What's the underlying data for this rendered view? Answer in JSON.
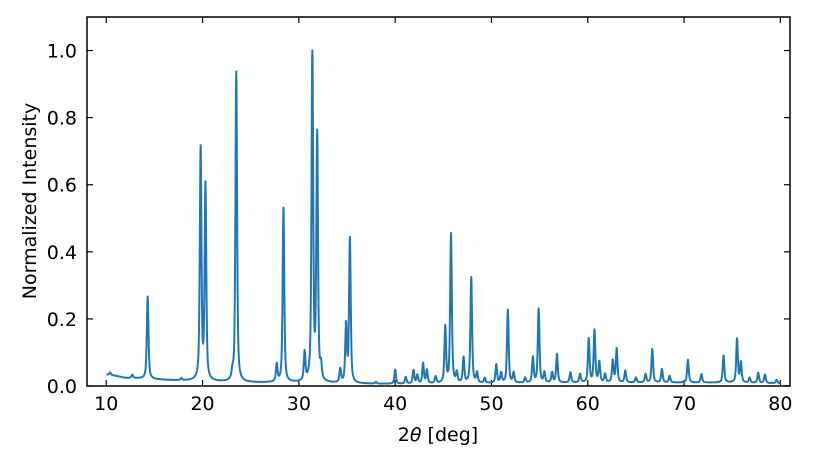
{
  "chart_data": {
    "type": "line",
    "title": "",
    "xlabel_prefix": "2",
    "xlabel_symbol": "θ",
    "xlabel_suffix": " [deg]",
    "ylabel": "Normalized Intensity",
    "xlim": [
      8,
      81
    ],
    "ylim": [
      0,
      1.1
    ],
    "xticks": [
      10,
      20,
      30,
      40,
      50,
      60,
      70,
      80
    ],
    "yticks": [
      0.0,
      0.2,
      0.4,
      0.6,
      0.8,
      1.0
    ],
    "xtick_labels": [
      "10",
      "20",
      "30",
      "40",
      "50",
      "60",
      "70",
      "80"
    ],
    "ytick_labels": [
      "0.0",
      "0.2",
      "0.4",
      "0.6",
      "0.8",
      "1.0"
    ],
    "grid": false,
    "line_color": "#1f77b4",
    "baseline": [
      [
        10,
        0.034
      ],
      [
        11,
        0.03
      ],
      [
        12,
        0.024
      ],
      [
        14,
        0.022
      ],
      [
        16,
        0.018
      ],
      [
        18,
        0.016
      ],
      [
        20,
        0.014
      ],
      [
        22,
        0.012
      ],
      [
        26,
        0.01
      ],
      [
        30,
        0.01
      ],
      [
        35,
        0.007
      ],
      [
        40,
        0.006
      ],
      [
        45,
        0.007
      ],
      [
        50,
        0.008
      ],
      [
        55,
        0.009
      ],
      [
        60,
        0.01
      ],
      [
        65,
        0.01
      ],
      [
        70,
        0.01
      ],
      [
        75,
        0.01
      ],
      [
        80,
        0.008
      ]
    ],
    "peaks": [
      {
        "x": 10.4,
        "h": 0.008
      },
      {
        "x": 12.7,
        "h": 0.01
      },
      {
        "x": 14.3,
        "h": 0.245
      },
      {
        "x": 17.8,
        "h": 0.006
      },
      {
        "x": 19.8,
        "h": 0.69
      },
      {
        "x": 20.3,
        "h": 0.58
      },
      {
        "x": 23.1,
        "h": 0.02
      },
      {
        "x": 23.5,
        "h": 0.925
      },
      {
        "x": 27.7,
        "h": 0.052
      },
      {
        "x": 28.4,
        "h": 0.52
      },
      {
        "x": 30.6,
        "h": 0.085
      },
      {
        "x": 31.4,
        "h": 0.99
      },
      {
        "x": 31.9,
        "h": 0.73
      },
      {
        "x": 32.3,
        "h": 0.04
      },
      {
        "x": 34.3,
        "h": 0.04
      },
      {
        "x": 34.9,
        "h": 0.17
      },
      {
        "x": 35.3,
        "h": 0.43
      },
      {
        "x": 38.0,
        "h": 0.005
      },
      {
        "x": 40.0,
        "h": 0.042
      },
      {
        "x": 41.1,
        "h": 0.02
      },
      {
        "x": 41.9,
        "h": 0.04
      },
      {
        "x": 42.3,
        "h": 0.025
      },
      {
        "x": 42.9,
        "h": 0.06
      },
      {
        "x": 43.3,
        "h": 0.04
      },
      {
        "x": 44.2,
        "h": 0.02
      },
      {
        "x": 45.2,
        "h": 0.167
      },
      {
        "x": 45.8,
        "h": 0.445
      },
      {
        "x": 46.4,
        "h": 0.03
      },
      {
        "x": 47.1,
        "h": 0.075
      },
      {
        "x": 47.9,
        "h": 0.315
      },
      {
        "x": 48.5,
        "h": 0.03
      },
      {
        "x": 49.3,
        "h": 0.015
      },
      {
        "x": 50.5,
        "h": 0.055
      },
      {
        "x": 51.0,
        "h": 0.03
      },
      {
        "x": 51.7,
        "h": 0.218
      },
      {
        "x": 52.3,
        "h": 0.03
      },
      {
        "x": 53.5,
        "h": 0.015
      },
      {
        "x": 54.3,
        "h": 0.075
      },
      {
        "x": 54.9,
        "h": 0.22
      },
      {
        "x": 55.5,
        "h": 0.03
      },
      {
        "x": 56.3,
        "h": 0.03
      },
      {
        "x": 56.8,
        "h": 0.085
      },
      {
        "x": 58.2,
        "h": 0.03
      },
      {
        "x": 59.2,
        "h": 0.025
      },
      {
        "x": 60.1,
        "h": 0.13
      },
      {
        "x": 60.7,
        "h": 0.155
      },
      {
        "x": 61.2,
        "h": 0.06
      },
      {
        "x": 61.8,
        "h": 0.025
      },
      {
        "x": 62.6,
        "h": 0.065
      },
      {
        "x": 63.0,
        "h": 0.1
      },
      {
        "x": 63.9,
        "h": 0.035
      },
      {
        "x": 65.0,
        "h": 0.015
      },
      {
        "x": 66.0,
        "h": 0.025
      },
      {
        "x": 66.7,
        "h": 0.1
      },
      {
        "x": 67.7,
        "h": 0.04
      },
      {
        "x": 68.5,
        "h": 0.02
      },
      {
        "x": 70.4,
        "h": 0.068
      },
      {
        "x": 71.8,
        "h": 0.025
      },
      {
        "x": 74.1,
        "h": 0.08
      },
      {
        "x": 75.5,
        "h": 0.13
      },
      {
        "x": 75.9,
        "h": 0.06
      },
      {
        "x": 76.8,
        "h": 0.015
      },
      {
        "x": 77.7,
        "h": 0.03
      },
      {
        "x": 78.4,
        "h": 0.025
      },
      {
        "x": 79.6,
        "h": 0.01
      }
    ],
    "peak_width_deg": 0.1
  }
}
